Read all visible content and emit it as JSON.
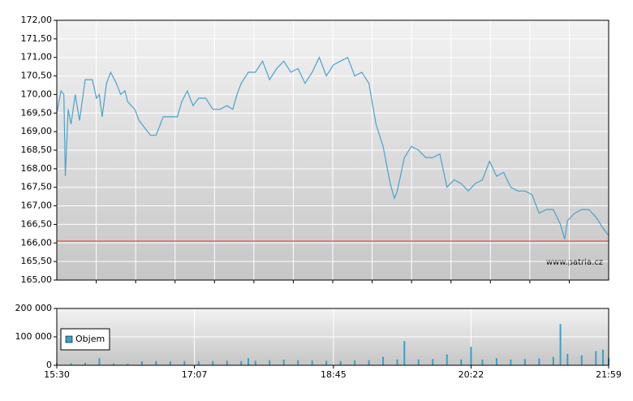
{
  "chart_data": [
    {
      "type": "line",
      "annotation": "www.patria.cz",
      "xlim": [
        "15:30",
        "21:59"
      ],
      "ylim": [
        165,
        172
      ],
      "yticks": [
        {
          "value": 165,
          "label": "165,00"
        },
        {
          "value": 165.5,
          "label": "165,50"
        },
        {
          "value": 166,
          "label": "166,00"
        },
        {
          "value": 166.5,
          "label": "166,50"
        },
        {
          "value": 167,
          "label": "167,00"
        },
        {
          "value": 167.5,
          "label": "167,50"
        },
        {
          "value": 168,
          "label": "168,00"
        },
        {
          "value": 168.5,
          "label": "168,50"
        },
        {
          "value": 169,
          "label": "169,00"
        },
        {
          "value": 169.5,
          "label": "169,50"
        },
        {
          "value": 170,
          "label": "170,00"
        },
        {
          "value": 170.5,
          "label": "170,50"
        },
        {
          "value": 171,
          "label": "171,00"
        },
        {
          "value": 171.5,
          "label": "171,50"
        },
        {
          "value": 172,
          "label": "172,00"
        }
      ],
      "reference_line": {
        "value": 166.05,
        "color": "#d9534f"
      },
      "grid": true,
      "series": [
        {
          "color": "#4aa3cc",
          "x": [
            "15:30",
            "15:33",
            "15:35",
            "15:36",
            "15:38",
            "15:40",
            "15:43",
            "15:46",
            "15:50",
            "15:55",
            "15:58",
            "16:00",
            "16:02",
            "16:05",
            "16:08",
            "16:12",
            "16:15",
            "16:18",
            "16:20",
            "16:25",
            "16:28",
            "16:32",
            "16:36",
            "16:40",
            "16:45",
            "16:50",
            "16:55",
            "16:58",
            "17:02",
            "17:06",
            "17:10",
            "17:15",
            "17:20",
            "17:25",
            "17:30",
            "17:34",
            "17:37",
            "17:40",
            "17:45",
            "17:50",
            "17:55",
            "18:00",
            "18:05",
            "18:10",
            "18:15",
            "18:20",
            "18:25",
            "18:30",
            "18:35",
            "18:40",
            "18:45",
            "18:50",
            "18:55",
            "19:00",
            "19:05",
            "19:10",
            "19:15",
            "19:20",
            "19:25",
            "19:28",
            "19:30",
            "19:35",
            "19:40",
            "19:45",
            "19:50",
            "19:55",
            "20:00",
            "20:05",
            "20:10",
            "20:15",
            "20:20",
            "20:25",
            "20:30",
            "20:35",
            "20:40",
            "20:45",
            "20:50",
            "20:55",
            "21:00",
            "21:05",
            "21:10",
            "21:15",
            "21:20",
            "21:25",
            "21:28",
            "21:30",
            "21:35",
            "21:40",
            "21:45",
            "21:50",
            "21:55",
            "21:59"
          ],
          "values": [
            169.5,
            170.1,
            170.0,
            167.8,
            169.6,
            169.2,
            170.0,
            169.3,
            170.4,
            170.4,
            169.9,
            170.0,
            169.4,
            170.3,
            170.6,
            170.3,
            170.0,
            170.1,
            169.8,
            169.6,
            169.3,
            169.1,
            168.9,
            168.9,
            169.4,
            169.4,
            169.4,
            169.8,
            170.1,
            169.7,
            169.9,
            169.9,
            169.6,
            169.6,
            169.7,
            169.6,
            170.0,
            170.3,
            170.6,
            170.6,
            170.9,
            170.4,
            170.7,
            170.9,
            170.6,
            170.7,
            170.3,
            170.6,
            171.0,
            170.5,
            170.8,
            170.9,
            171.0,
            170.5,
            170.6,
            170.3,
            169.2,
            168.6,
            167.6,
            167.2,
            167.4,
            168.3,
            168.6,
            168.5,
            168.3,
            168.3,
            168.4,
            167.5,
            167.7,
            167.6,
            167.4,
            167.6,
            167.7,
            168.2,
            167.8,
            167.9,
            167.5,
            167.4,
            167.4,
            167.3,
            166.8,
            166.9,
            166.9,
            166.5,
            166.1,
            166.6,
            166.8,
            166.9,
            166.9,
            166.7,
            166.4,
            166.2
          ]
        }
      ]
    },
    {
      "type": "bar",
      "xlim": [
        "15:30",
        "21:59"
      ],
      "xticks": [
        "15:30",
        "17:07",
        "18:45",
        "20:22",
        "21:59"
      ],
      "ylim": [
        0,
        200000
      ],
      "yticks": [
        0,
        {
          "value": 100000,
          "label": "100 000"
        },
        {
          "value": 200000,
          "label": "200 000"
        }
      ],
      "legend": "bottom-left",
      "series": [
        {
          "name": "Objem",
          "color": "#3aa0c8",
          "x": [
            "15:30",
            "15:40",
            "15:50",
            "16:00",
            "16:10",
            "16:20",
            "16:30",
            "16:40",
            "16:50",
            "17:00",
            "17:10",
            "17:20",
            "17:30",
            "17:40",
            "17:45",
            "17:50",
            "18:00",
            "18:10",
            "18:20",
            "18:30",
            "18:40",
            "18:50",
            "19:00",
            "19:10",
            "19:20",
            "19:30",
            "19:35",
            "19:45",
            "19:55",
            "20:05",
            "20:15",
            "20:22",
            "20:30",
            "20:40",
            "20:50",
            "21:00",
            "21:10",
            "21:20",
            "21:25",
            "21:30",
            "21:40",
            "21:50",
            "21:55",
            "21:59"
          ],
          "values": [
            8000,
            7000,
            9000,
            25000,
            6000,
            5000,
            14000,
            15000,
            14000,
            15000,
            14000,
            15000,
            16000,
            15000,
            25000,
            16000,
            18000,
            20000,
            18000,
            17000,
            16000,
            15000,
            17000,
            18000,
            30000,
            20000,
            85000,
            20000,
            22000,
            38000,
            20000,
            65000,
            20000,
            25000,
            20000,
            22000,
            24000,
            30000,
            145000,
            40000,
            35000,
            50000,
            55000,
            25000
          ]
        }
      ]
    }
  ]
}
